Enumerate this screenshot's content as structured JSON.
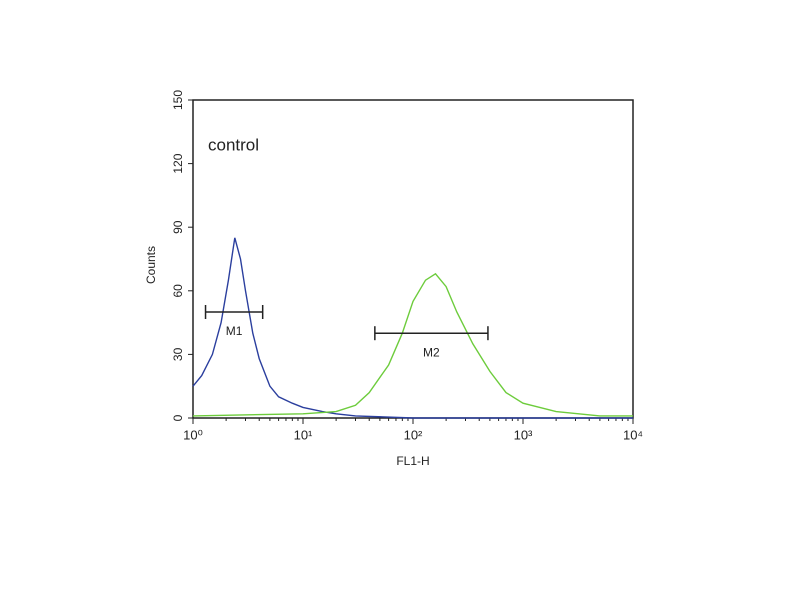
{
  "chart_data": {
    "type": "line",
    "annotation": "control",
    "xlabel": "FL1-H",
    "ylabel": "Counts",
    "xscale": "log",
    "xlim": [
      1,
      10000
    ],
    "xticks": [
      {
        "value": 1,
        "label": "10⁰"
      },
      {
        "value": 10,
        "label": "10¹"
      },
      {
        "value": 100,
        "label": "10²"
      },
      {
        "value": 1000,
        "label": "10³"
      },
      {
        "value": 10000,
        "label": "10⁴"
      }
    ],
    "ylim": [
      0,
      150
    ],
    "yticks": [
      0,
      30,
      60,
      90,
      120,
      150
    ],
    "series": [
      {
        "color": "#2b3f9e",
        "x": [
          1,
          1.2,
          1.5,
          1.8,
          2.1,
          2.4,
          2.7,
          3,
          3.5,
          4,
          5,
          6,
          8,
          10,
          15,
          20,
          30,
          100,
          1000,
          10000
        ],
        "values": [
          15,
          20,
          30,
          45,
          65,
          85,
          75,
          60,
          40,
          28,
          15,
          10,
          7,
          5,
          3,
          2,
          1,
          0,
          0,
          0
        ]
      },
      {
        "color": "#6dcc3c",
        "x": [
          1,
          10,
          20,
          30,
          40,
          60,
          80,
          100,
          130,
          160,
          200,
          250,
          350,
          500,
          700,
          1000,
          2000,
          5000,
          10000
        ],
        "values": [
          1,
          2,
          3,
          6,
          12,
          25,
          40,
          55,
          65,
          68,
          62,
          50,
          35,
          22,
          12,
          7,
          3,
          1,
          1
        ]
      }
    ],
    "markers": [
      {
        "label": "M1",
        "x": [
          1.3,
          4.3
        ],
        "y": 50
      },
      {
        "label": "M2",
        "x": [
          45,
          480
        ],
        "y": 40
      }
    ]
  }
}
